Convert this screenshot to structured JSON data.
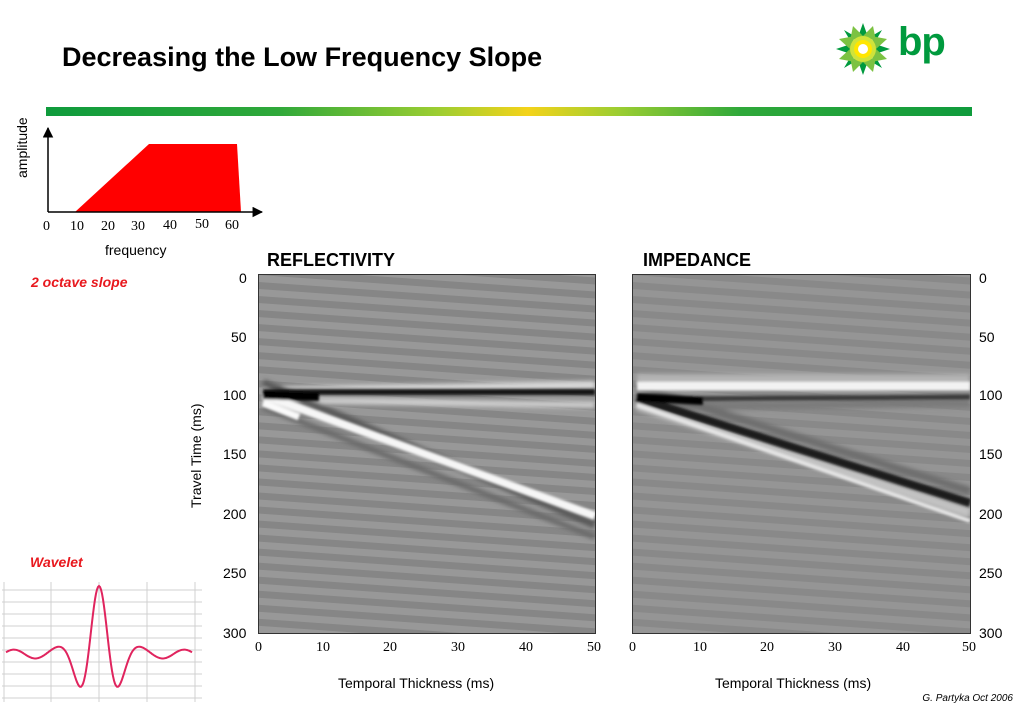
{
  "title": "Decreasing the Low Frequency Slope",
  "logo": {
    "text": "bp",
    "icon": "bp-helios-icon"
  },
  "spectrum": {
    "ylabel": "amplitude",
    "xlabel": "frequency",
    "ticks": [
      "0",
      "10",
      "20",
      "30",
      "40",
      "50",
      "60"
    ],
    "fill_color": "#ff0000"
  },
  "slope_note": "2 octave slope",
  "wavelet_label": "Wavelet",
  "panels": {
    "reflectivity": {
      "title": "REFLECTIVITY",
      "xlabel": "Temporal Thickness (ms)",
      "xticks": [
        "0",
        "10",
        "20",
        "30",
        "40",
        "50"
      ],
      "ylabel": "Travel Time (ms)",
      "yticks": [
        "0",
        "50",
        "100",
        "150",
        "200",
        "250",
        "300"
      ]
    },
    "impedance": {
      "title": "IMPEDANCE",
      "xlabel": "Temporal Thickness (ms)",
      "xticks": [
        "0",
        "10",
        "20",
        "30",
        "40",
        "50"
      ],
      "yticks": [
        "0",
        "50",
        "100",
        "150",
        "200",
        "250",
        "300"
      ]
    }
  },
  "footer": "G. Partyka Oct 2006",
  "colors": {
    "accent_red": "#e8181e",
    "wavelet": "#e0245e",
    "bp_green": "#009a3e",
    "bp_yellow": "#f4d31a"
  }
}
